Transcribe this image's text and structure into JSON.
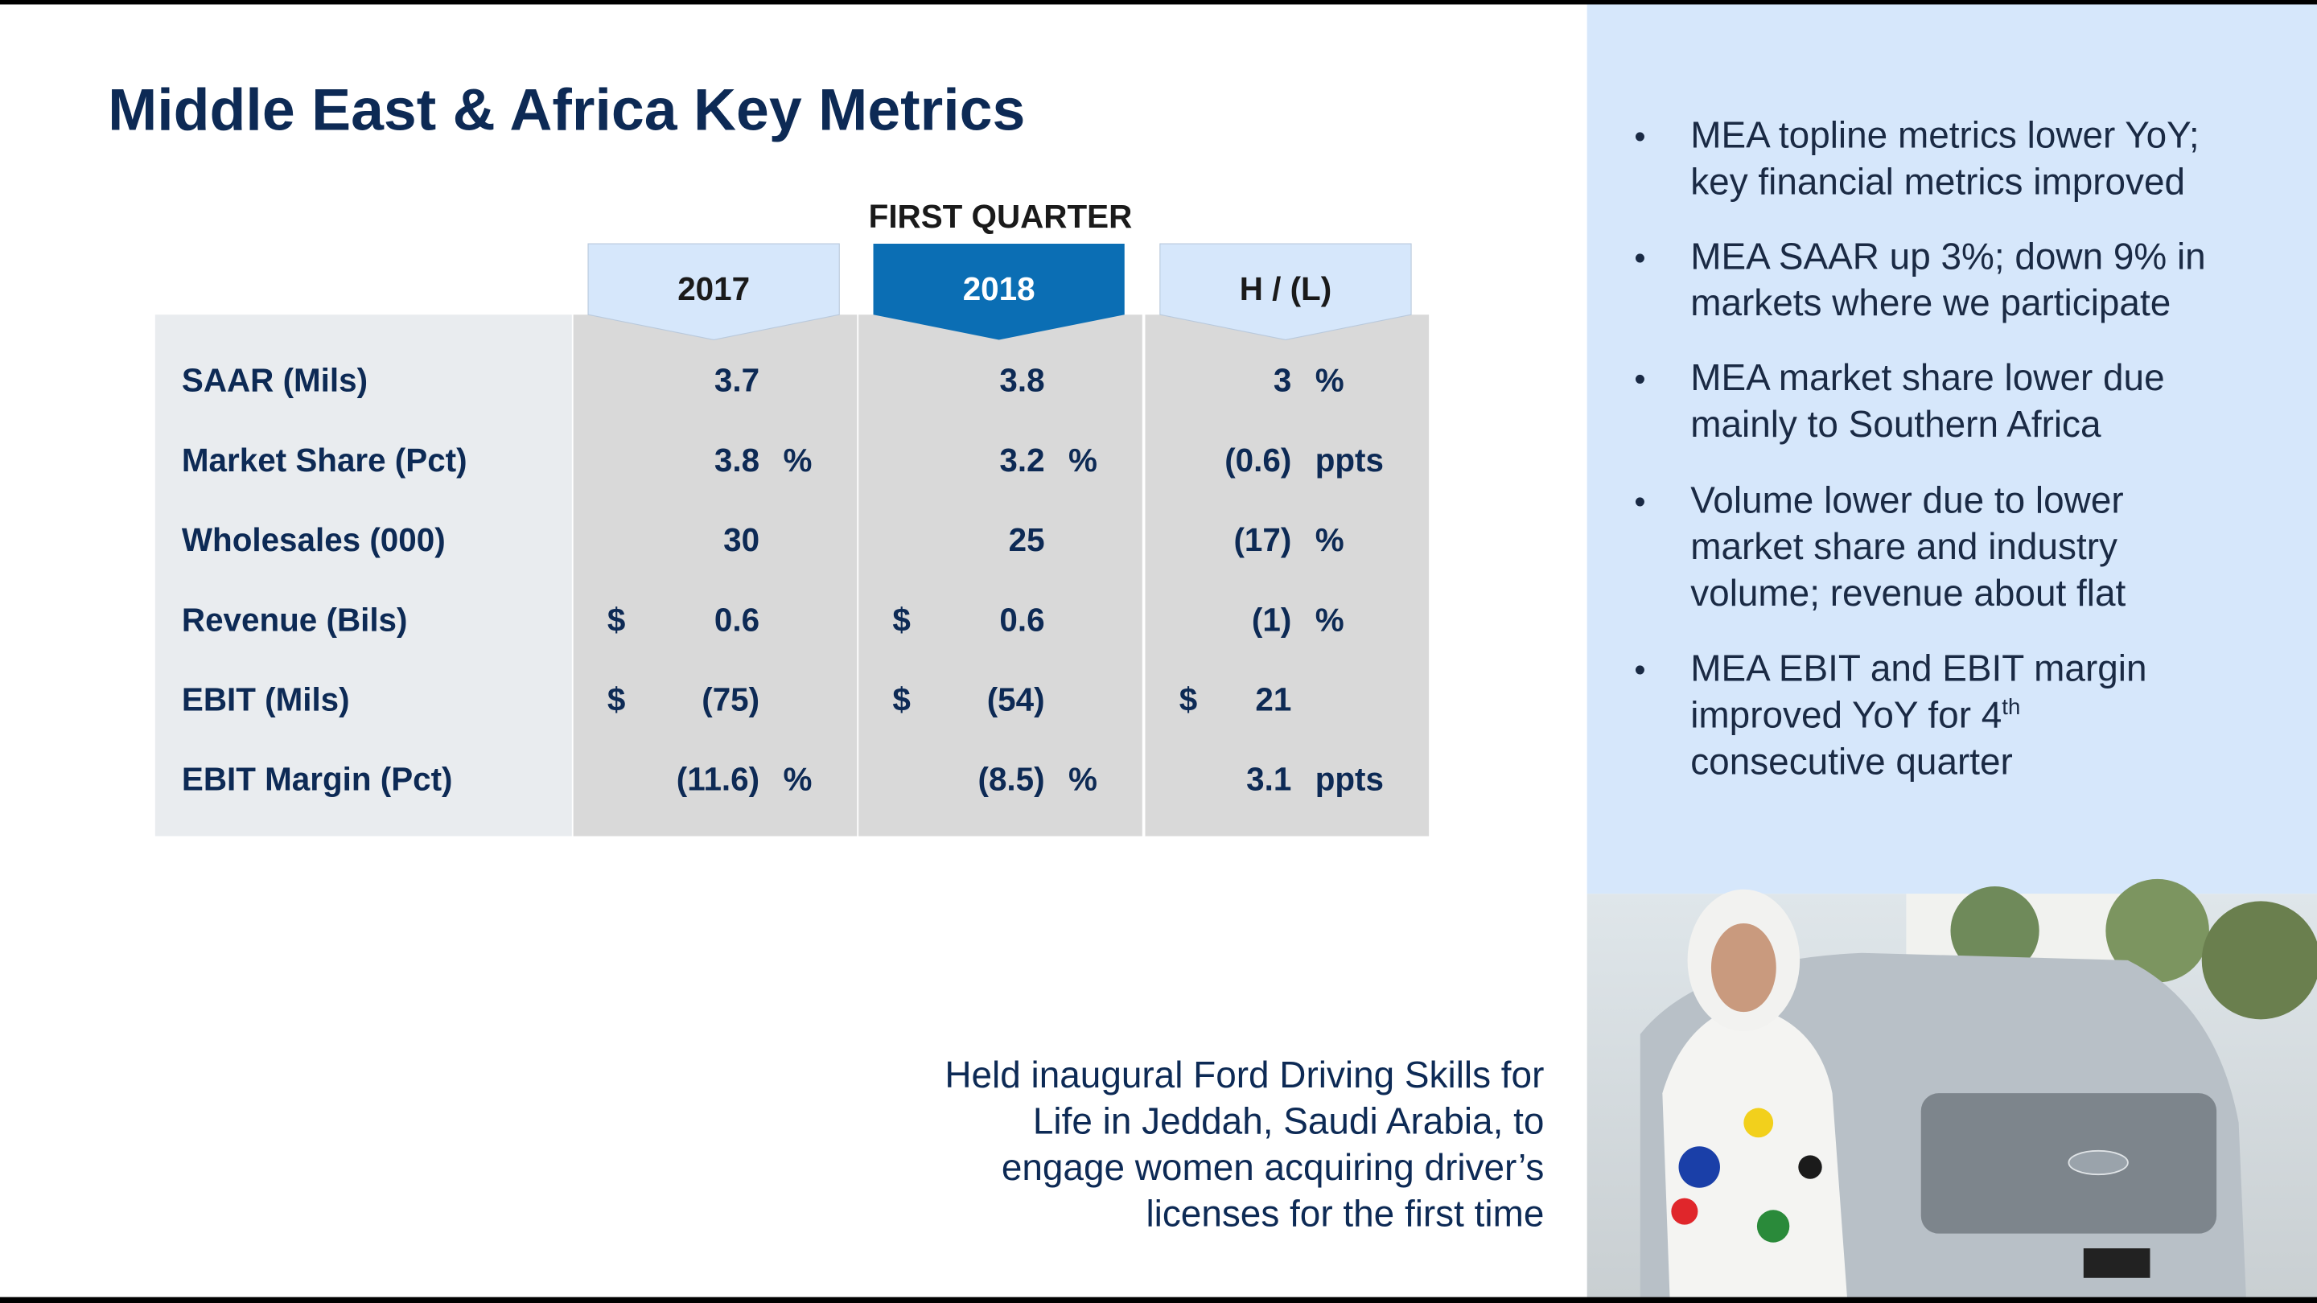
{
  "header": {
    "title": "Middle East & Africa Key Metrics"
  },
  "table": {
    "group_header": "FIRST QUARTER",
    "columns": [
      "2017",
      "2018",
      "H / (L)"
    ],
    "rows": [
      {
        "label": "SAAR (Mils)",
        "cells": [
          {
            "value": "3.7"
          },
          {
            "value": "3.8"
          },
          {
            "value": "3",
            "suffix": "%"
          }
        ]
      },
      {
        "label": "Market Share (Pct)",
        "cells": [
          {
            "value": "3.8",
            "suffix": "%"
          },
          {
            "value": "3.2",
            "suffix": "%"
          },
          {
            "value": "(0.6)",
            "suffix": "ppts"
          }
        ]
      },
      {
        "label": "Wholesales (000)",
        "cells": [
          {
            "value": "30"
          },
          {
            "value": "25"
          },
          {
            "value": "(17)",
            "suffix": "%"
          }
        ]
      },
      {
        "label": "Revenue (Bils)",
        "cells": [
          {
            "prefix": "$",
            "value": "0.6"
          },
          {
            "prefix": "$",
            "value": "0.6"
          },
          {
            "value": "(1)",
            "suffix": "%"
          }
        ]
      },
      {
        "label": "EBIT (Mils)",
        "cells": [
          {
            "prefix": "$",
            "value": "(75)"
          },
          {
            "prefix": "$",
            "value": "(54)"
          },
          {
            "prefix": "$",
            "value": "21"
          }
        ]
      },
      {
        "label": "EBIT Margin (Pct)",
        "cells": [
          {
            "value": "(11.6)",
            "suffix": "%"
          },
          {
            "value": "(8.5)",
            "suffix": "%"
          },
          {
            "value": "3.1",
            "suffix": "ppts"
          }
        ]
      }
    ]
  },
  "bullets": [
    {
      "lines": [
        "MEA topline metrics lower YoY;",
        "key financial metrics improved"
      ]
    },
    {
      "lines": [
        "MEA SAAR up 3%; down 9% in",
        "markets where we participate"
      ]
    },
    {
      "lines": [
        "MEA market share lower due",
        "mainly to Southern Africa"
      ]
    },
    {
      "lines": [
        "Volume lower due to lower",
        "market share and industry",
        "volume; revenue about flat"
      ]
    },
    {
      "lines": [
        "MEA EBIT and EBIT margin",
        "improved YoY for 4",
        "consecutive quarter"
      ],
      "superscript": "th"
    }
  ],
  "caption": {
    "lines": [
      "Held inaugural Ford Driving Skills for",
      "Life in Jeddah, Saudi Arabia, to",
      "engage women acquiring driver’s",
      "licenses for the first time"
    ]
  }
}
